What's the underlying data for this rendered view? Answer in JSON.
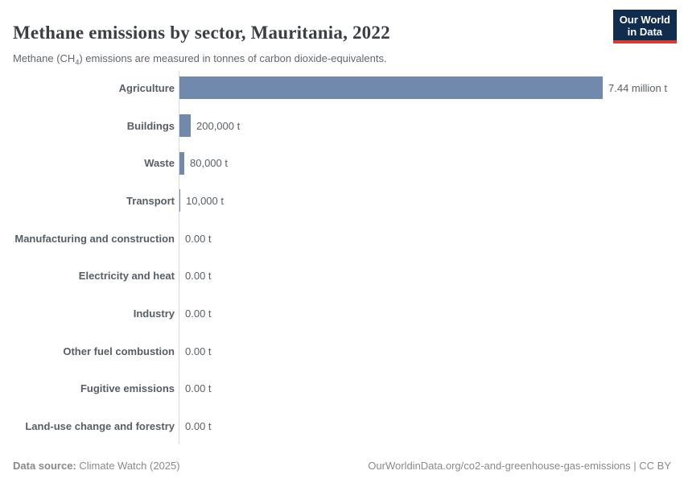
{
  "header": {
    "title": "Methane emissions by sector, Mauritania, 2022",
    "subtitle_prefix": "Methane (CH",
    "subtitle_sub": "4",
    "subtitle_suffix": ") emissions are measured in tonnes of carbon dioxide-equivalents.",
    "logo_line1": "Our World",
    "logo_line2": "in Data"
  },
  "chart_data": {
    "type": "bar",
    "orientation": "horizontal",
    "title": "Methane emissions by sector, Mauritania, 2022",
    "unit": "t",
    "categories": [
      "Agriculture",
      "Buildings",
      "Waste",
      "Transport",
      "Manufacturing and construction",
      "Electricity and heat",
      "Industry",
      "Other fuel combustion",
      "Fugitive emissions",
      "Land-use change and forestry"
    ],
    "values": [
      7440000,
      200000,
      80000,
      10000,
      0,
      0,
      0,
      0,
      0,
      0
    ],
    "value_labels": [
      "7.44 million t",
      "200,000 t",
      "80,000 t",
      "10,000 t",
      "0.00 t",
      "0.00 t",
      "0.00 t",
      "0.00 t",
      "0.00 t",
      "0.00 t"
    ],
    "xlim": [
      0,
      7440000
    ],
    "grid": false,
    "legend": "none",
    "bar_color": "#7189ad",
    "axis_color": "#dadada"
  },
  "colors": {
    "logo_background": "#102d4e",
    "logo_underline": "#d93a32",
    "bar_accent": "#7189ad"
  },
  "footer": {
    "datasource_label": "Data source:",
    "datasource_value": " Climate Watch (2025)",
    "credit": "OurWorldinData.org/co2-and-greenhouse-gas-emissions | CC BY"
  }
}
